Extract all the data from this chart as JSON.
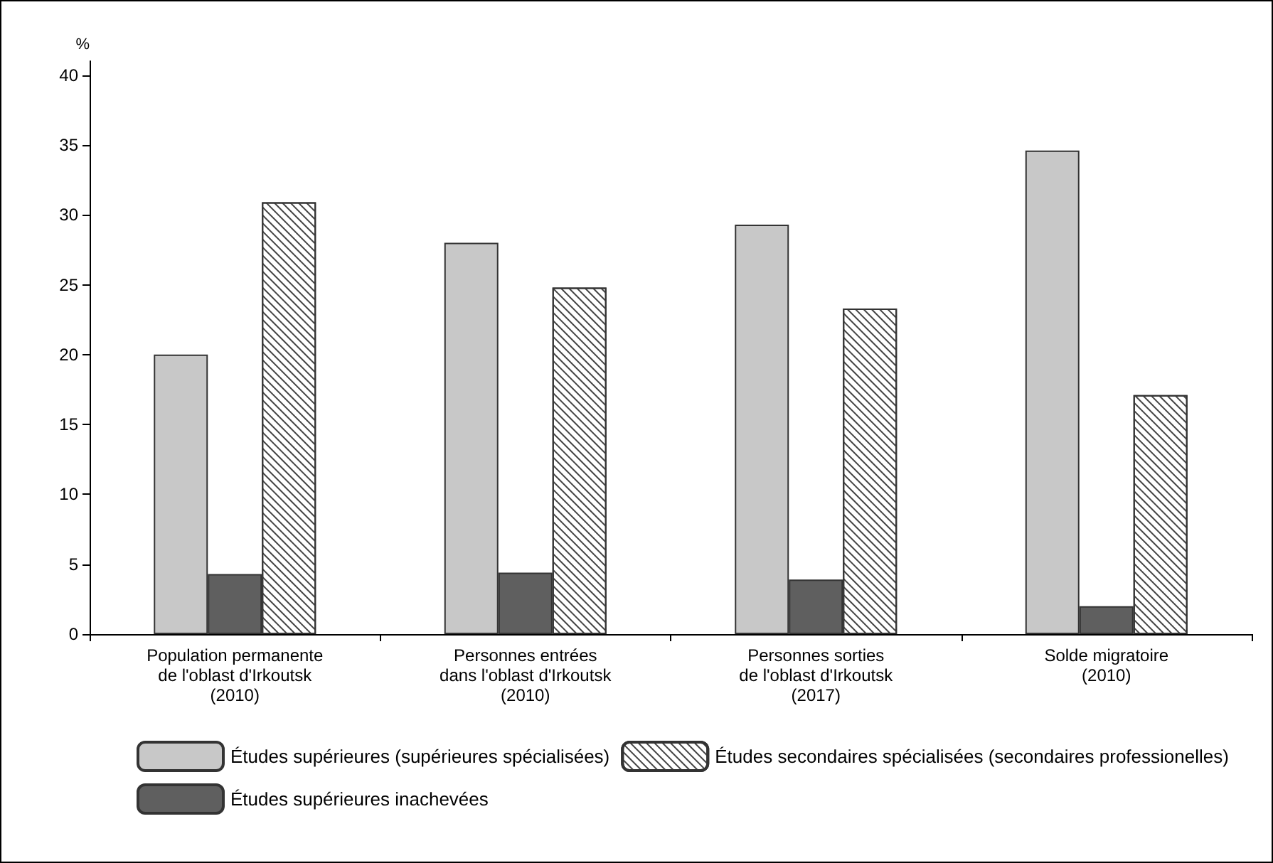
{
  "chart_data": {
    "type": "bar",
    "ylabel": "%",
    "categories": [
      "Population permanente\nde l'oblast d'Irkoutsk\n(2010)",
      "Personnes entrées\ndans l'oblast d'Irkoutsk\n(2010)",
      "Personnes sorties\nde l'oblast d'Irkoutsk\n(2017)",
      "Solde migratoire\n(2010)"
    ],
    "series": [
      {
        "name": "Études supérieures (supérieures spécialisées)",
        "color": "#c8c8c8",
        "values": [
          20.0,
          28.0,
          29.3,
          34.6
        ]
      },
      {
        "name": "Études supérieures inachevées",
        "color": "#5f5f5f",
        "values": [
          4.3,
          4.4,
          3.9,
          2.0
        ]
      },
      {
        "name": "Études secondaires spécialisées (secondaires professionelles)",
        "color": "#ffffff",
        "values": [
          30.9,
          24.8,
          23.3,
          17.1
        ]
      }
    ],
    "ylim": [
      0,
      41
    ],
    "yticks": [
      0,
      5,
      10,
      15,
      20,
      25,
      30,
      35,
      40
    ],
    "grid": false,
    "legend": "bottom"
  }
}
